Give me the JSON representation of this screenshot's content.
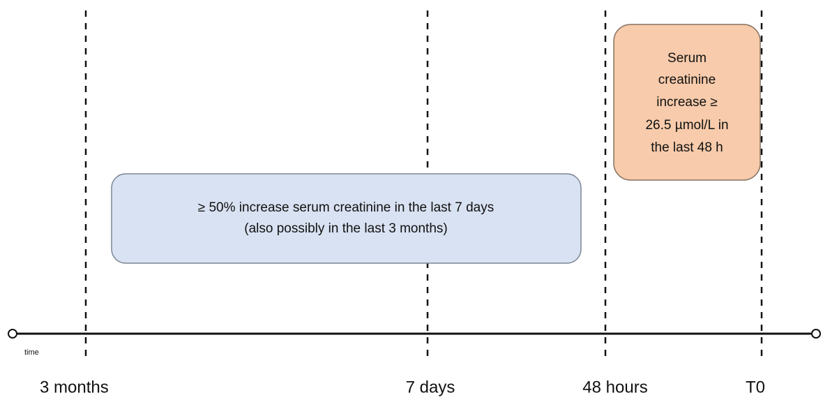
{
  "boxes": [
    {
      "lines": [
        "≥ 50% increase serum creatinine in the last 7 days",
        "(also possibly in the last 3 months)"
      ]
    },
    {
      "lines": [
        "Serum",
        "creatinine",
        "increase ≥",
        "26.5 µmol/L in",
        "the last 48 h"
      ]
    }
  ],
  "axis_label": "time",
  "time_points": [
    "3 months",
    "7 days",
    "48 hours",
    "T0"
  ]
}
